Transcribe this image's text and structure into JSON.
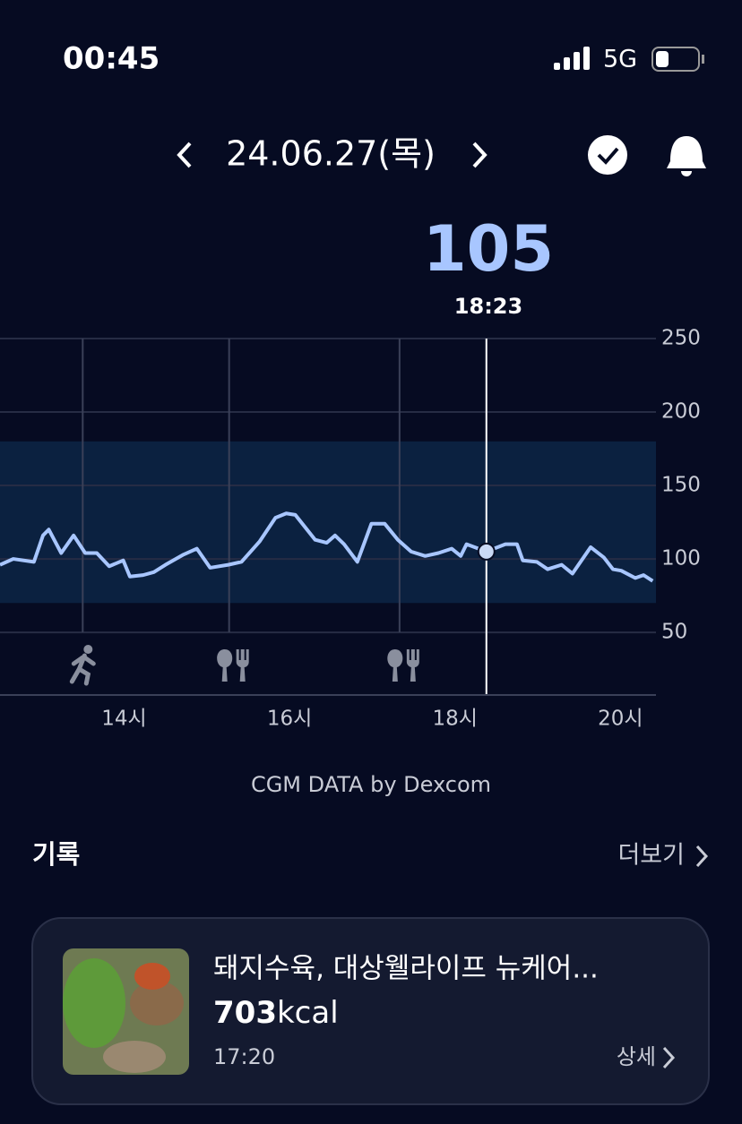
{
  "status": {
    "time": "00:45",
    "network": "5G"
  },
  "header": {
    "date": "24.06.27(목)"
  },
  "reading": {
    "value": "105",
    "time": "18:23"
  },
  "chart_data": {
    "type": "line",
    "color": "#a8c6ff",
    "band_color": "#0b2140",
    "x": [
      12.5,
      12.66,
      12.91,
      13.02,
      13.09,
      13.24,
      13.39,
      13.53,
      13.67,
      13.82,
      13.99,
      14.07,
      14.23,
      14.36,
      14.5,
      14.72,
      14.88,
      15.04,
      15.26,
      15.42,
      15.64,
      15.83,
      15.96,
      16.07,
      16.31,
      16.45,
      16.55,
      16.66,
      16.82,
      16.99,
      17.15,
      17.31,
      17.47,
      17.64,
      17.8,
      17.96,
      18.07,
      18.14,
      18.38,
      18.61,
      18.75,
      18.82,
      18.99,
      19.12,
      19.29,
      19.42,
      19.64,
      19.8,
      19.91,
      20.01,
      20.18,
      20.28,
      20.39
    ],
    "values": [
      96,
      100,
      98,
      116,
      120,
      104,
      116,
      104,
      104,
      95,
      99,
      88,
      89,
      91,
      96,
      103,
      107,
      94,
      96,
      98,
      112,
      128,
      131,
      130,
      113,
      111,
      116,
      110,
      98,
      124,
      124,
      113,
      105,
      102,
      104,
      107,
      102,
      110,
      105,
      110,
      110,
      99,
      98,
      93,
      96,
      90,
      108,
      101,
      93,
      92,
      87,
      89,
      85
    ],
    "highlight_x": 18.38,
    "highlight_value": 105,
    "target_range": [
      70,
      180
    ],
    "xlim": [
      12.5,
      20.43
    ],
    "ylim": [
      8,
      250
    ],
    "xticks": [
      {
        "value": 14,
        "label": "14시"
      },
      {
        "value": 16,
        "label": "16시"
      },
      {
        "value": 18,
        "label": "18시"
      },
      {
        "value": 20,
        "label": "20시"
      }
    ],
    "yticks": [
      50,
      100,
      150,
      200,
      250
    ],
    "exercise_x": [
      13.5
    ],
    "meal_x": [
      15.27,
      17.33
    ],
    "source": "CGM DATA by Dexcom"
  },
  "records": {
    "title": "기록",
    "more": "더보기",
    "card": {
      "name": "돼지수육, 대상웰라이프 뉴케어...",
      "calories": 703,
      "unit": "kcal",
      "time": "17:20",
      "detail": "상세"
    }
  }
}
